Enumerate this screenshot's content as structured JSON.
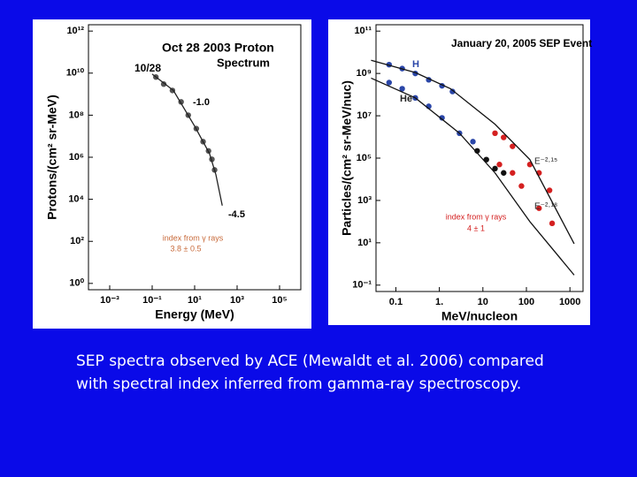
{
  "chart_data": [
    {
      "type": "scatter",
      "log_x": true,
      "log_y": true,
      "x_label": "Energy (MeV)",
      "y_label": "Protons/(cm² sr-MeV)",
      "xlim": [
        0.0001,
        1000000
      ],
      "ylim": [
        0.5,
        2000000000000
      ],
      "xticks": [
        {
          "value": 0.001,
          "label": "10⁻³"
        },
        {
          "value": 0.1,
          "label": "10⁻¹"
        },
        {
          "value": 10,
          "label": "10¹"
        },
        {
          "value": 1000,
          "label": "10³"
        },
        {
          "value": 100000,
          "label": "10⁵"
        }
      ],
      "yticks": [
        {
          "value": 1,
          "label": "10⁰"
        },
        {
          "value": 100,
          "label": "10²"
        },
        {
          "value": 10000,
          "label": "10⁴"
        },
        {
          "value": 1000000,
          "label": "10⁶"
        },
        {
          "value": 100000000,
          "label": "10⁸"
        },
        {
          "value": 10000000000,
          "label": "10¹⁰"
        },
        {
          "value": 1000000000000,
          "label": "10¹²"
        }
      ],
      "series": [
        {
          "color": "#555555",
          "mode": "markers",
          "x": [
            0.15,
            0.35,
            0.9,
            2.3,
            5,
            12,
            25,
            45,
            65,
            87
          ],
          "values": [
            6500000000,
            3000000000,
            1500000000,
            430000000,
            100000000,
            23000000,
            5500000,
            2000000,
            800000,
            250000
          ]
        },
        {
          "color": "#222222",
          "mode": "line",
          "x": [
            0.1,
            1,
            10,
            50,
            100,
            200
          ],
          "values": [
            9000000000,
            1500000000,
            30000000,
            1500000,
            150000,
            5000
          ]
        }
      ],
      "annotations": [
        "Oct 28 2003 Proton",
        "Spectrum",
        "10/28",
        "-1.0",
        "-4.5",
        "index from γ rays",
        "3.8 ± 0.5"
      ]
    },
    {
      "type": "scatter",
      "log_x": true,
      "log_y": true,
      "x_label": "MeV/nucleon",
      "y_label": "Particles/(cm² sr-MeV/nuc)",
      "xlim": [
        0.035,
        2000
      ],
      "ylim": [
        0.05,
        200000000000
      ],
      "xticks": [
        0.1,
        {
          "value": 1,
          "label": "1."
        },
        10,
        100,
        1000
      ],
      "yticks": [
        {
          "value": 0.1,
          "label": "10⁻¹"
        },
        {
          "value": 10,
          "label": "10¹"
        },
        {
          "value": 1000,
          "label": "10³"
        },
        {
          "value": 100000,
          "label": "10⁵"
        },
        {
          "value": 10000000,
          "label": "10⁷"
        },
        {
          "value": 1000000000,
          "label": "10⁹"
        },
        {
          "value": 100000000000,
          "label": "10¹¹"
        }
      ],
      "series": [
        {
          "color": "#2a46a8",
          "mode": "markers",
          "x": [
            0.07,
            0.14,
            0.28,
            0.57,
            1.15,
            2.0
          ],
          "values": [
            2600000000,
            1700000000,
            1000000000,
            500000000,
            260000000,
            140000000
          ]
        },
        {
          "color": "#d42020",
          "mode": "markers",
          "x": [
            19,
            30,
            48,
            120,
            195,
            340
          ],
          "values": [
            1500000,
            950000,
            360000,
            50000,
            20000,
            3000
          ]
        },
        {
          "color": "#2a46a8",
          "mode": "markers",
          "x": [
            0.07,
            0.14,
            0.28,
            0.57,
            1.15,
            2.9,
            5.9
          ],
          "values": [
            370000000,
            190000000,
            70000000,
            28000000,
            8000000,
            1500000,
            600000
          ]
        },
        {
          "color": "#111111",
          "mode": "markers",
          "x": [
            7.4,
            12,
            19,
            30
          ],
          "values": [
            220000,
            85000,
            32000,
            20000
          ]
        },
        {
          "color": "#d42020",
          "mode": "markers",
          "x": [
            24,
            48,
            77,
            195,
            390
          ],
          "values": [
            50000,
            20000,
            4800,
            430,
            83
          ]
        },
        {
          "color": "#111111",
          "mode": "line",
          "x": [
            0.027,
            0.28,
            1.8,
            19,
            120,
            1250
          ],
          "values": [
            4200000000,
            1100000000,
            190000000,
            4000000,
            85000,
            9
          ]
        },
        {
          "color": "#111111",
          "mode": "line",
          "x": [
            0.027,
            0.28,
            2.9,
            19,
            120,
            1250
          ],
          "values": [
            600000000,
            70000000,
            1500000,
            20000,
            100,
            0.3
          ]
        }
      ],
      "annotations": [
        "January 20, 2005 SEP Event",
        "H",
        "He",
        "E⁻²·¹⁵",
        "E⁻²·¹⁸",
        "index from γ rays",
        "4 ± 1"
      ]
    }
  ],
  "caption": [
    "SEP spectra observed by ACE (Mewaldt et al. 2006) compared",
    "with spectral index inferred from gamma-ray spectroscopy."
  ]
}
